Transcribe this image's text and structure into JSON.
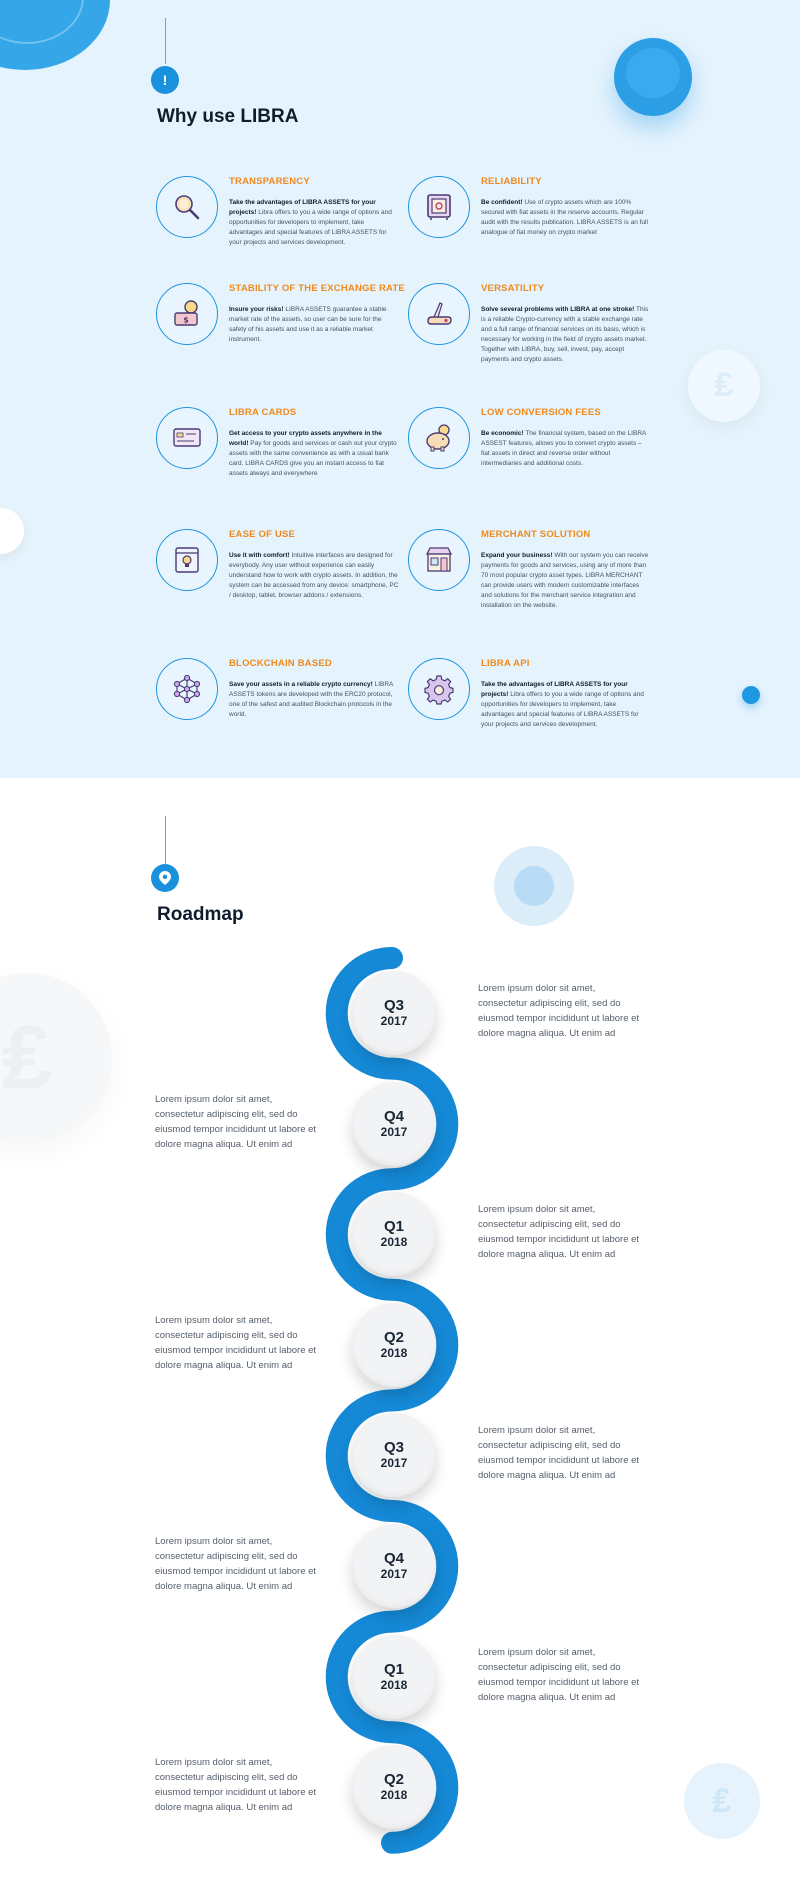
{
  "why": {
    "title": "Why use LIBRA",
    "badge": "!",
    "features": [
      {
        "title": "TRANSPARENCY",
        "icon": "magnifier-icon",
        "lead": "Take the advantages of LIBRA ASSETS for your projects!",
        "body": " Libra offers to you a wide range of options and opportunities for developers to implement, take advantages and special features of LIBRA ASSETS for your projects and services development."
      },
      {
        "title": "RELIABILITY",
        "icon": "safe-icon",
        "lead": "Be confident!",
        "body": " Use of crypto assets which are 100% secured with fiat assets in the reserve accounts. Regular audit with the results publication. LIBRA ASSETS is an full analogue of fiat money on crypto market"
      },
      {
        "title": "STABILITY OF THE EXCHANGE RATE",
        "icon": "coin-hand-icon",
        "lead": "Insure your risks!",
        "body": " LIBRA ASSETS guarantee a stable market rate of the assets, so user can be sure for the safety of his assets and use it as a reliable market instrument."
      },
      {
        "title": "VERSATILITY",
        "icon": "swiss-knife-icon",
        "lead": "Solve several problems with LIBRA at one stroke!",
        "body": " This is a reliable Crypto-currency with a stable exchange rate and a full range of financial services on its basis, which is necessary for working in the field of crypto assets market. Together with LIBRA, buy, sell, invest, pay, accept payments and crypto assets."
      },
      {
        "title": "LIBRA CARDS",
        "icon": "card-icon",
        "lead": "Get access to your crypto assets anywhere in the world!",
        "body": " Pay for goods and services or cash out your crypto assets with the same convenience as with a usual bank card. LIBRA CARDS give you an instant access to fiat assets always and everywhere"
      },
      {
        "title": "LOW CONVERSION FEES",
        "icon": "piggy-bank-icon",
        "lead": "Be economic!",
        "body": " The financial system, based on the LIBRA ASSEST features, allows you to convert crypto assets – fiat assets in direct and reverse order without intermediaries and additional costs."
      },
      {
        "title": "EASE OF USE",
        "icon": "lightbulb-icon",
        "lead": "Use it with comfort!",
        "body": " Intuitive interfaces are designed for everybody.  Any user without experience can easily understand how to work with crypto assets. In addition, the system can be accessed from any device: smartphone, PC / desktop, tablet, browser addons / extensions."
      },
      {
        "title": "MERCHANT SOLUTION",
        "icon": "shop-icon",
        "lead": "Expand your business!",
        "body": " With our system you can receive payments for goods and services, using any of more than 70 most popular crypto asset types. LIBRA MERCHANT can provide users with modern customizable interfaces and solutions for the merchant service integration and installation on the website."
      },
      {
        "title": "BLOCKCHAIN BASED",
        "icon": "network-icon",
        "lead": "Save your assets in a reliable crypto currency!",
        "body": " LIBRA ASSETS tokens are developed with the ERC20 protocol, one of the safest and audited Blockchain protocols in the world."
      },
      {
        "title": "LIBRA API",
        "icon": "gear-icon",
        "lead": "Take the advantages of LIBRA ASSETS for your projects!",
        "body": " Libra offers to you a wide range of options and opportunities for developers to implement, take advantages and special features of LIBRA ASSETS for your projects and services development."
      }
    ]
  },
  "roadmap": {
    "title": "Roadmap",
    "badge_icon": "location-pin-icon",
    "milestones": [
      {
        "quarter": "Q3",
        "year": "2017",
        "text": "Lorem ipsum dolor sit amet, consectetur adipiscing elit, sed do eiusmod tempor incididunt ut labore et dolore magna aliqua. Ut enim ad"
      },
      {
        "quarter": "Q4",
        "year": "2017",
        "text": "Lorem ipsum dolor sit amet, consectetur adipiscing elit, sed do eiusmod tempor incididunt ut labore et dolore magna aliqua. Ut enim ad"
      },
      {
        "quarter": "Q1",
        "year": "2018",
        "text": "Lorem ipsum dolor sit amet, consectetur adipiscing elit, sed do eiusmod tempor incididunt ut labore et dolore magna aliqua. Ut enim ad"
      },
      {
        "quarter": "Q2",
        "year": "2018",
        "text": "Lorem ipsum dolor sit amet, consectetur adipiscing elit, sed do eiusmod tempor incididunt ut labore et dolore magna aliqua. Ut enim ad"
      },
      {
        "quarter": "Q3",
        "year": "2017",
        "text": "Lorem ipsum dolor sit amet, consectetur adipiscing elit, sed do eiusmod tempor incididunt ut labore et dolore magna aliqua. Ut enim ad"
      },
      {
        "quarter": "Q4",
        "year": "2017",
        "text": "Lorem ipsum dolor sit amet, consectetur adipiscing elit, sed do eiusmod tempor incididunt ut labore et dolore magna aliqua. Ut enim ad"
      },
      {
        "quarter": "Q1",
        "year": "2018",
        "text": "Lorem ipsum dolor sit amet, consectetur adipiscing elit, sed do eiusmod tempor incididunt ut labore et dolore magna aliqua. Ut enim ad"
      },
      {
        "quarter": "Q2",
        "year": "2018",
        "text": "Lorem ipsum dolor sit amet, consectetur adipiscing elit, sed do eiusmod tempor incididunt ut labore et dolore magna aliqua. Ut enim ad"
      }
    ]
  },
  "colors": {
    "accent": "#1a91dd",
    "feature_title": "#f08a1c",
    "section_bg": "#e5f3fd"
  }
}
